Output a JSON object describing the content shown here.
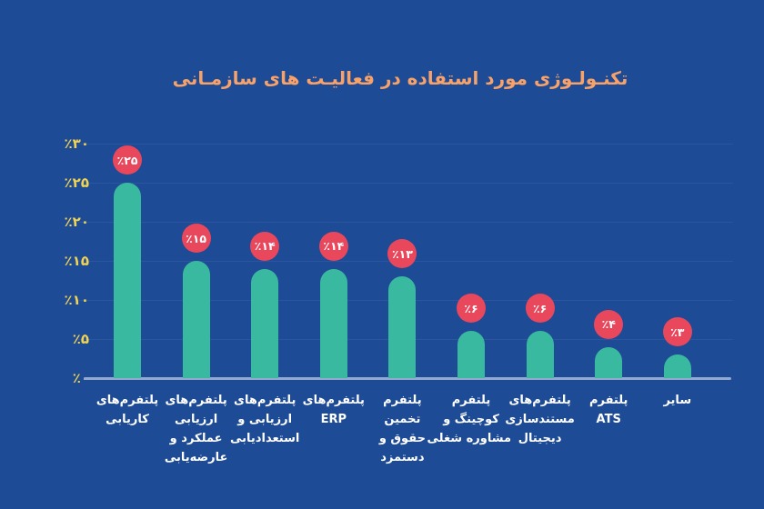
{
  "chart_data": {
    "type": "bar",
    "title": "تکنـولـوژی مورد استفاده در فعالیـت های سازمـانی",
    "direction": "rtl",
    "ylabel": "",
    "xlabel": "",
    "ylim": [
      0,
      30
    ],
    "grid": true,
    "legend": "none",
    "y_ticks": [
      {
        "value": 0,
        "label": "٪۰"
      },
      {
        "value": 5,
        "label": "٪۵"
      },
      {
        "value": 10,
        "label": "٪۱۰"
      },
      {
        "value": 15,
        "label": "٪۱۵"
      },
      {
        "value": 20,
        "label": "٪۲۰"
      },
      {
        "value": 25,
        "label": "٪۲۵"
      },
      {
        "value": 30,
        "label": "٪۳۰"
      }
    ],
    "bars": [
      {
        "category_lines": [
          "پلتفرم‌های",
          "کاریابی"
        ],
        "value": 25,
        "value_label": "٪۲۵"
      },
      {
        "category_lines": [
          "پلتفرم‌های",
          "ارزیابی",
          "عملکرد و",
          "عارضه‌یابی"
        ],
        "value": 15,
        "value_label": "٪۱۵"
      },
      {
        "category_lines": [
          "پلتفرم‌های",
          "ارزیابی و",
          "استعدادیابی"
        ],
        "value": 14,
        "value_label": "٪۱۴"
      },
      {
        "category_lines": [
          "پلتفرم‌های",
          "ERP"
        ],
        "value": 14,
        "value_label": "٪۱۴"
      },
      {
        "category_lines": [
          "پلتفرم",
          "تخمین",
          "حقوق و",
          "دستمزد"
        ],
        "value": 13,
        "value_label": "٪۱۳"
      },
      {
        "category_lines": [
          "پلتفرم",
          "کوچینگ و",
          "مشاوره شغلی"
        ],
        "value": 6,
        "value_label": "٪۶"
      },
      {
        "category_lines": [
          "پلتفرم‌های",
          "مستندسازی",
          "دیجیتال"
        ],
        "value": 6,
        "value_label": "٪۶"
      },
      {
        "category_lines": [
          "پلتفرم",
          "ATS"
        ],
        "value": 4,
        "value_label": "٪۴"
      },
      {
        "category_lines": [
          "سایر"
        ],
        "value": 3,
        "value_label": "٪۳"
      }
    ],
    "colors": {
      "background": "#1E4B95",
      "bar": "#39B9A0",
      "badge": "#E9475C",
      "badge_text": "#FFFFFF",
      "title": "#F8A269",
      "y_tick": "#EFD351",
      "x_label": "#FFFFFF",
      "baseline": "#93A9D2",
      "gridline": "#2B559E"
    }
  }
}
